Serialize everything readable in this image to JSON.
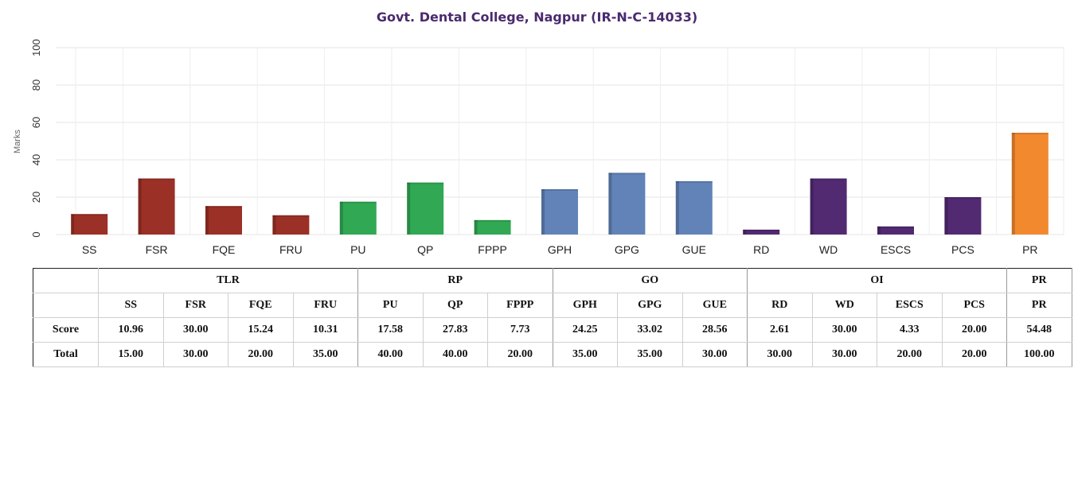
{
  "chart_data": {
    "type": "bar",
    "title": "Govt. Dental College, Nagpur (IR-N-C-14033)",
    "ylabel": "Marks",
    "ylim": [
      0,
      100
    ],
    "yticks": [
      0,
      20,
      40,
      60,
      80,
      100
    ],
    "grid": true,
    "categories": [
      "SS",
      "FSR",
      "FQE",
      "FRU",
      "PU",
      "QP",
      "FPPP",
      "GPH",
      "GPG",
      "GUE",
      "RD",
      "WD",
      "ESCS",
      "PCS",
      "PR"
    ],
    "values": [
      10.96,
      30.0,
      15.24,
      10.31,
      17.58,
      27.83,
      7.73,
      24.25,
      33.02,
      28.56,
      2.61,
      30.0,
      4.33,
      20.0,
      54.48
    ],
    "colors": [
      "#9b3027",
      "#9b3027",
      "#9b3027",
      "#9b3027",
      "#31a853",
      "#31a853",
      "#31a853",
      "#6183b8",
      "#6183b8",
      "#6183b8",
      "#512a72",
      "#512a72",
      "#512a72",
      "#512a72",
      "#f2892f"
    ]
  },
  "table": {
    "groups": [
      {
        "label": "TLR",
        "span": 4
      },
      {
        "label": "RP",
        "span": 3
      },
      {
        "label": "GO",
        "span": 3
      },
      {
        "label": "OI",
        "span": 4
      },
      {
        "label": "PR",
        "span": 1
      }
    ],
    "columns": [
      "SS",
      "FSR",
      "FQE",
      "FRU",
      "PU",
      "QP",
      "FPPP",
      "GPH",
      "GPG",
      "GUE",
      "RD",
      "WD",
      "ESCS",
      "PCS",
      "PR"
    ],
    "rows": [
      {
        "label": "Score",
        "values": [
          "10.96",
          "30.00",
          "15.24",
          "10.31",
          "17.58",
          "27.83",
          "7.73",
          "24.25",
          "33.02",
          "28.56",
          "2.61",
          "30.00",
          "4.33",
          "20.00",
          "54.48"
        ]
      },
      {
        "label": "Total",
        "values": [
          "15.00",
          "30.00",
          "20.00",
          "35.00",
          "40.00",
          "40.00",
          "20.00",
          "35.00",
          "35.00",
          "30.00",
          "30.00",
          "30.00",
          "20.00",
          "20.00",
          "100.00"
        ]
      }
    ]
  }
}
